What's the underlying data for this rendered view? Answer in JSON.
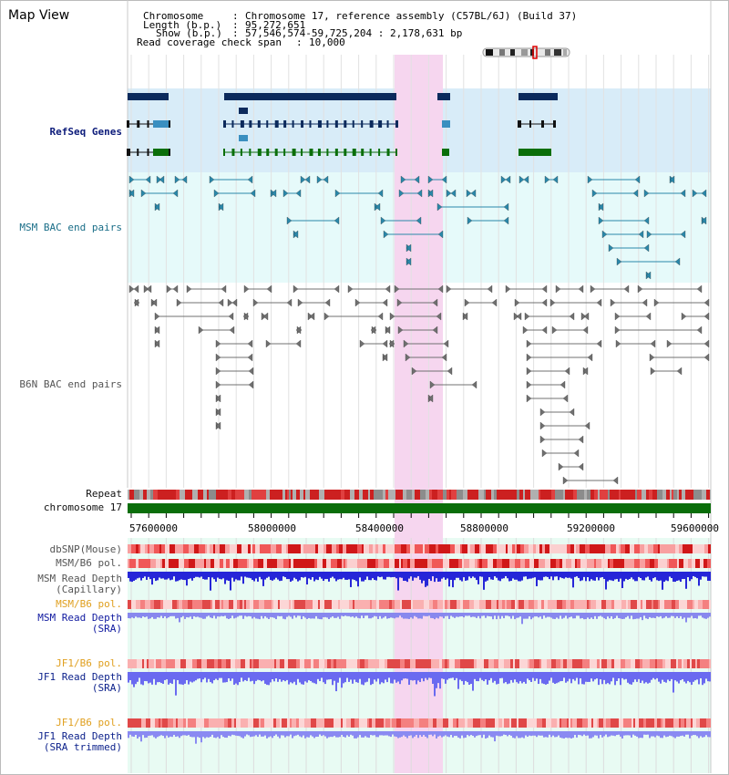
{
  "header": {
    "title": "Map View",
    "chromosome_label": "Chromosome",
    "chromosome_value": "Chromosome 17, reference assembly (C57BL/6J) (Build 37)",
    "length_label": "Length (b.p.)",
    "length_value": "95,272,651",
    "show_label": "Show (b.p.)",
    "show_value": "57,546,574-59,725,204 : 2,178,631 bp",
    "coverage_label": "Read coverage check span",
    "coverage_value": "10,000"
  },
  "tracks": {
    "refseq": "RefSeq Genes",
    "msm_bac": "MSM BAC end pairs",
    "b6n_bac": "B6N BAC end pairs",
    "repeat": "Repeat",
    "chromosome": "chromosome 17",
    "dbsnp": "dbSNP(Mouse)",
    "msm_b6_pol": "MSM/B6 pol.",
    "msm_read_depth_cap_1": "MSM Read Depth",
    "msm_read_depth_cap_2": "(Capillary)",
    "msm_b6_pol_2": "MSM/B6 pol.",
    "msm_read_depth_sra_1": "MSM Read Depth",
    "msm_read_depth_sra_2": "(SRA)",
    "jf1_b6_pol": "JF1/B6 pol.",
    "jf1_read_depth_sra_1": "JF1 Read Depth",
    "jf1_read_depth_sra_2": "(SRA)",
    "jf1_b6_pol_2": "JF1/B6 pol.",
    "jf1_read_depth_trim_1": "JF1 Read Depth",
    "jf1_read_depth_trim_2": "(SRA trimmed)"
  },
  "axis": {
    "ticks": [
      "57600000",
      "58000000",
      "58400000",
      "58800000",
      "59200000",
      "59600000"
    ]
  },
  "colors": {
    "refseq_bg": "#d8ecf8",
    "msm_bg": "#e6fafa",
    "highlight": "#f6d6ef",
    "gene_dark": "#0b2a5c",
    "gene_mid": "#3a8fc0",
    "gene_green": "#0a6e0a",
    "msm_pair": "#2a88aa",
    "b6n_pair": "#707070",
    "chrom_green": "#0a6e0a",
    "depth_blue": "#2020e0",
    "depth_light": "#8080f0"
  }
}
